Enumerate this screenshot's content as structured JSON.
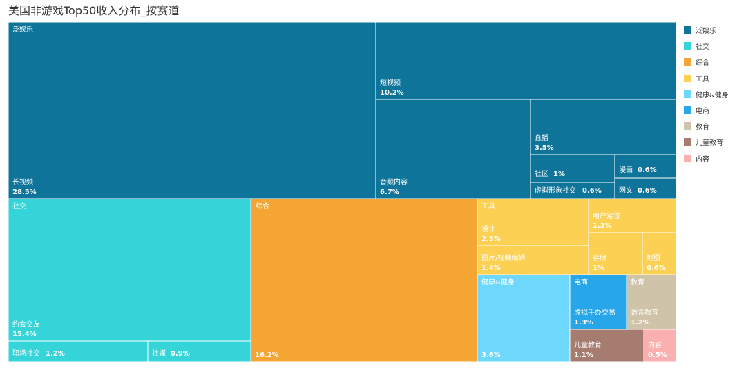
{
  "chart_data": {
    "type": "treemap",
    "title": "美国非游戏Top50收入分布_按赛道",
    "legend": "right",
    "groups": [
      {
        "name": "泛娱乐",
        "color": "#0e7499",
        "children": [
          {
            "name": "长视频",
            "value": 28.5,
            "label": "28.5%"
          },
          {
            "name": "短视频",
            "value": 10.2,
            "label": "10.2%"
          },
          {
            "name": "音频内容",
            "value": 6.7,
            "label": "6.7%"
          },
          {
            "name": "直播",
            "value": 3.5,
            "label": "3.5%"
          },
          {
            "name": "社区",
            "value": 1,
            "label": "1%"
          },
          {
            "name": "虚拟形象社交",
            "value": 0.6,
            "label": "0.6%"
          },
          {
            "name": "漫画",
            "value": 0.6,
            "label": "0.6%"
          },
          {
            "name": "网文",
            "value": 0.6,
            "label": "0.6%"
          }
        ]
      },
      {
        "name": "社交",
        "color": "#35d4d8",
        "children": [
          {
            "name": "约会交友",
            "value": 15.4,
            "label": "15.4%"
          },
          {
            "name": "职场社交",
            "value": 1.2,
            "label": "1.2%"
          },
          {
            "name": "社媒",
            "value": 0.9,
            "label": "0.9%"
          }
        ]
      },
      {
        "name": "综合",
        "color": "#f5a534",
        "children": [
          {
            "name": "",
            "value": 16.2,
            "label": "16.2%"
          }
        ]
      },
      {
        "name": "工具",
        "color": "#fbd053",
        "children": [
          {
            "name": "设计",
            "value": 2.3,
            "label": "2.3%"
          },
          {
            "name": "图片/视频编辑",
            "value": 1.4,
            "label": "1.4%"
          },
          {
            "name": "用户定位",
            "value": 1.3,
            "label": "1.3%"
          },
          {
            "name": "存储",
            "value": 1,
            "label": "1%"
          },
          {
            "name": "地图",
            "value": 0.6,
            "label": "0.6%"
          }
        ]
      },
      {
        "name": "健康&健身",
        "color": "#6dd8fc",
        "children": [
          {
            "name": "",
            "value": 3.6,
            "label": "3.6%"
          }
        ]
      },
      {
        "name": "电商",
        "color": "#28a6ea",
        "children": [
          {
            "name": "虚拟手办交易",
            "value": 1.3,
            "label": "1.3%"
          }
        ]
      },
      {
        "name": "教育",
        "color": "#cfc3aa",
        "children": [
          {
            "name": "语言教育",
            "value": 1.2,
            "label": "1.2%"
          }
        ]
      },
      {
        "name": "儿童教育",
        "color": "#a57c6f",
        "children": [
          {
            "name": "儿童教育",
            "value": 1.1,
            "label": "1.1%"
          }
        ]
      },
      {
        "name": "内容",
        "color": "#fbb0b0",
        "children": [
          {
            "name": "内容",
            "value": 0.5,
            "label": "0.5%"
          }
        ]
      }
    ]
  }
}
